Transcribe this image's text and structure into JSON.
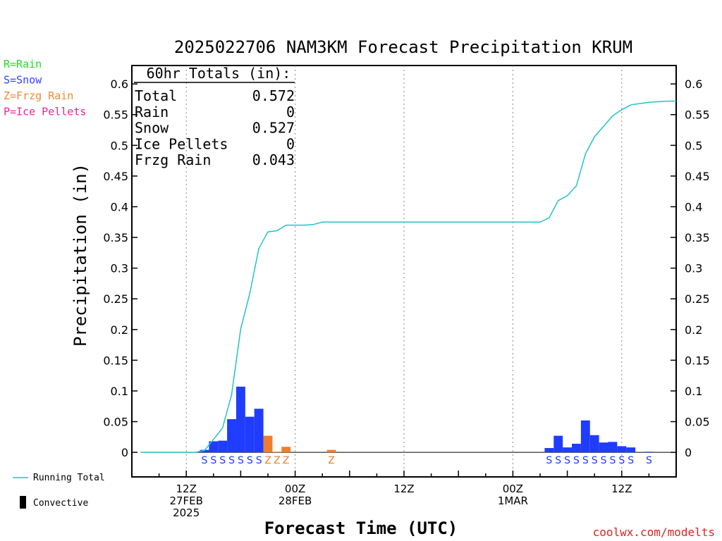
{
  "title": "2025022706 NAM3KM Forecast Precipitation KRUM",
  "ylabel": "Precipitation (in)",
  "xlabel": "Forecast Time (UTC)",
  "credit": "coolwx.com/modelts",
  "legend_types": [
    {
      "text": "R=Rain",
      "color": "#22dd22"
    },
    {
      "text": "S=Snow",
      "color": "#3344ff"
    },
    {
      "text": "Z=Frzg Rain",
      "color": "#ee8833"
    },
    {
      "text": "P=Ice Pellets",
      "color": "#ee2299"
    }
  ],
  "legend_bottom": {
    "running_total": "Running Total",
    "convective": "Convective"
  },
  "totals": {
    "header": "60hr Totals (in):",
    "rows": [
      {
        "label": "Total",
        "value": "0.572"
      },
      {
        "label": "Rain",
        "value": "0"
      },
      {
        "label": "Snow",
        "value": "0.527"
      },
      {
        "label": "Ice Pellets",
        "value": "0"
      },
      {
        "label": "Frzg Rain",
        "value": "0.043"
      }
    ]
  },
  "chart_data": {
    "type": "bar",
    "title": "2025022706 NAM3KM Forecast Precipitation KRUM",
    "xlabel": "Forecast Time (UTC)",
    "ylabel": "Precipitation (in)",
    "x_unit": "hours from 2025-02-27 00Z",
    "xlim": [
      6,
      66
    ],
    "ylim": [
      -0.04,
      0.63
    ],
    "yticks": [
      0,
      0.05,
      0.1,
      0.15,
      0.2,
      0.25,
      0.3,
      0.35,
      0.4,
      0.45,
      0.5,
      0.55,
      0.6
    ],
    "ytick_labels": [
      "0",
      "0.05",
      "0.1",
      "0.15",
      "0.2",
      "0.25",
      "0.3",
      "0.35",
      "0.4",
      "0.45",
      "0.5",
      "0.55",
      "0.6"
    ],
    "xticks": [
      {
        "hour": 12,
        "lines": [
          "12Z",
          "27FEB",
          "2025"
        ]
      },
      {
        "hour": 24,
        "lines": [
          "00Z",
          "28FEB"
        ]
      },
      {
        "hour": 36,
        "lines": [
          "12Z"
        ]
      },
      {
        "hour": 48,
        "lines": [
          "00Z",
          "1MAR"
        ]
      },
      {
        "hour": 60,
        "lines": [
          "12Z"
        ]
      }
    ],
    "grid": "dotted vertical at 6-hour intervals",
    "type_colors": {
      "S": "#1f3cff",
      "Z": "#ee7e2e",
      "R": "#22dd22",
      "P": "#ee2299"
    },
    "bars": [
      {
        "hour": 14,
        "value": 0.004,
        "type": "S"
      },
      {
        "hour": 15,
        "value": 0.018,
        "type": "S"
      },
      {
        "hour": 16,
        "value": 0.019,
        "type": "S"
      },
      {
        "hour": 17,
        "value": 0.054,
        "type": "S"
      },
      {
        "hour": 18,
        "value": 0.107,
        "type": "S"
      },
      {
        "hour": 19,
        "value": 0.058,
        "type": "S"
      },
      {
        "hour": 20,
        "value": 0.071,
        "type": "S"
      },
      {
        "hour": 21,
        "value": 0.027,
        "type": "Z"
      },
      {
        "hour": 22,
        "value": 0.001,
        "type": "Z"
      },
      {
        "hour": 23,
        "value": 0.009,
        "type": "Z"
      },
      {
        "hour": 28,
        "value": 0.004,
        "type": "Z"
      },
      {
        "hour": 52,
        "value": 0.007,
        "type": "S"
      },
      {
        "hour": 53,
        "value": 0.027,
        "type": "S"
      },
      {
        "hour": 54,
        "value": 0.008,
        "type": "S"
      },
      {
        "hour": 55,
        "value": 0.014,
        "type": "S"
      },
      {
        "hour": 56,
        "value": 0.052,
        "type": "S"
      },
      {
        "hour": 57,
        "value": 0.028,
        "type": "S"
      },
      {
        "hour": 58,
        "value": 0.016,
        "type": "S"
      },
      {
        "hour": 59,
        "value": 0.017,
        "type": "S"
      },
      {
        "hour": 60,
        "value": 0.01,
        "type": "S"
      },
      {
        "hour": 61,
        "value": 0.008,
        "type": "S"
      },
      {
        "hour": 63,
        "value": 0.001,
        "type": "S"
      }
    ],
    "type_markers": [
      {
        "hour": 14,
        "label": "S"
      },
      {
        "hour": 15,
        "label": "S"
      },
      {
        "hour": 16,
        "label": "S"
      },
      {
        "hour": 17,
        "label": "S"
      },
      {
        "hour": 18,
        "label": "S"
      },
      {
        "hour": 19,
        "label": "S"
      },
      {
        "hour": 20,
        "label": "S"
      },
      {
        "hour": 21,
        "label": "Z"
      },
      {
        "hour": 22,
        "label": "Z"
      },
      {
        "hour": 23,
        "label": "Z"
      },
      {
        "hour": 28,
        "label": "Z"
      },
      {
        "hour": 52,
        "label": "S"
      },
      {
        "hour": 53,
        "label": "S"
      },
      {
        "hour": 54,
        "label": "S"
      },
      {
        "hour": 55,
        "label": "S"
      },
      {
        "hour": 56,
        "label": "S"
      },
      {
        "hour": 57,
        "label": "S"
      },
      {
        "hour": 58,
        "label": "S"
      },
      {
        "hour": 59,
        "label": "S"
      },
      {
        "hour": 60,
        "label": "S"
      },
      {
        "hour": 61,
        "label": "S"
      },
      {
        "hour": 63,
        "label": "S"
      }
    ],
    "series": [
      {
        "name": "Running Total",
        "color": "#22c4c4",
        "x": [
          7,
          13,
          14,
          15,
          16,
          17,
          18,
          19,
          20,
          21,
          22,
          23,
          24,
          25,
          26,
          27,
          28,
          29,
          30,
          51,
          52,
          53,
          54,
          55,
          56,
          57,
          58,
          59,
          60,
          61,
          62,
          63,
          64,
          65,
          66
        ],
        "y": [
          0,
          0,
          0.003,
          0.021,
          0.04,
          0.094,
          0.201,
          0.259,
          0.332,
          0.359,
          0.361,
          0.37,
          0.37,
          0.37,
          0.371,
          0.375,
          0.375,
          0.375,
          0.375,
          0.375,
          0.382,
          0.41,
          0.418,
          0.434,
          0.486,
          0.514,
          0.531,
          0.548,
          0.558,
          0.566,
          0.568,
          0.57,
          0.571,
          0.572,
          0.572
        ]
      }
    ]
  }
}
